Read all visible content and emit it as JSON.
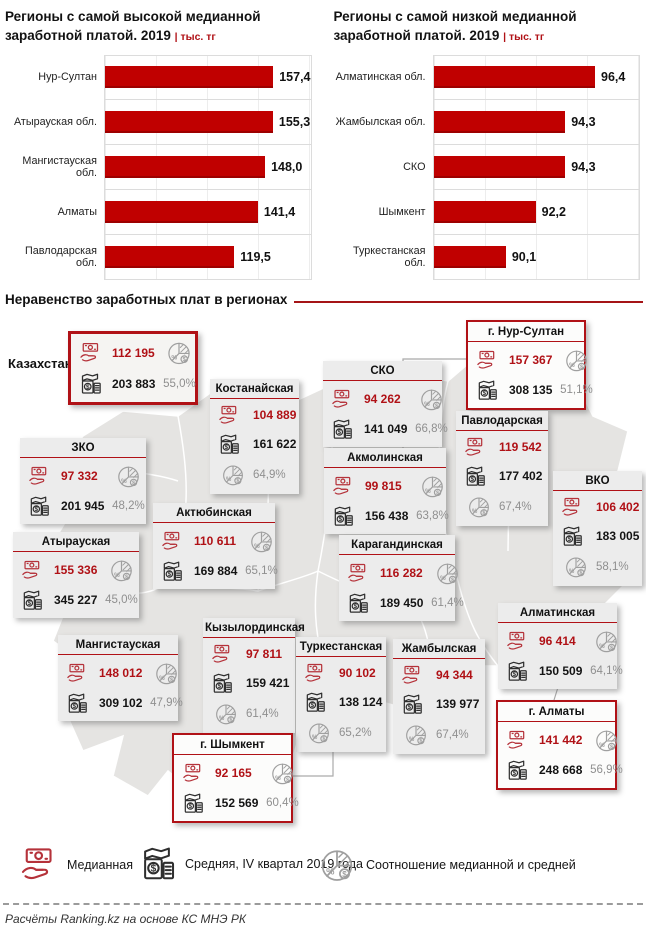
{
  "chart_data": [
    {
      "type": "bar",
      "orientation": "horizontal",
      "title": "Регионы с самой высокой медианной заработной платой. 2019",
      "unit": "| тыс. тг",
      "categories": [
        "Нур-Султан",
        "Атырауская обл.",
        "Мангистауская обл.",
        "Алматы",
        "Павлодарская обл."
      ],
      "values": [
        157.4,
        155.3,
        148.0,
        141.4,
        119.5
      ],
      "value_labels": [
        "157,4",
        "155,3",
        "148,0",
        "141,4",
        "119,5"
      ],
      "xlim": [
        0,
        190
      ],
      "bar_color": "#c00000",
      "grid": true,
      "legend": "none"
    },
    {
      "type": "bar",
      "orientation": "horizontal",
      "title": "Регионы с самой низкой медианной заработной платой. 2019",
      "unit": "| тыс. тг",
      "categories": [
        "Алматинская обл.",
        "Жамбылская обл.",
        "СКО",
        "Шымкент",
        "Туркестанская обл."
      ],
      "values": [
        96.4,
        94.3,
        94.3,
        92.2,
        90.1
      ],
      "value_labels": [
        "96,4",
        "94,3",
        "94,3",
        "92,2",
        "90,1"
      ],
      "xlim": [
        85,
        99.5
      ],
      "bar_color": "#c00000",
      "grid": true,
      "legend": "none"
    }
  ],
  "section": {
    "title": "Неравенство заработных плат в регионах"
  },
  "country": {
    "label": "Казахстан",
    "median": "112 195",
    "average": "203 883",
    "ratio": "55,0%"
  },
  "regions": [
    {
      "name": "СКО",
      "median": "94 262",
      "average": "141 049",
      "ratio": "66,8%"
    },
    {
      "name": "г. Нур-Султан",
      "median": "157 367",
      "average": "308 135",
      "ratio": "51,1%"
    },
    {
      "name": "Костанайская",
      "median": "104 889",
      "average": "161 622",
      "ratio": "64,9%"
    },
    {
      "name": "Акмолинская",
      "median": "99 815",
      "average": "156 438",
      "ratio": "63,8%"
    },
    {
      "name": "Павлодарская",
      "median": "119 542",
      "average": "177 402",
      "ratio": "67,4%"
    },
    {
      "name": "ВКО",
      "median": "106 402",
      "average": "183 005",
      "ratio": "58,1%"
    },
    {
      "name": "ЗКО",
      "median": "97 332",
      "average": "201 945",
      "ratio": "48,2%"
    },
    {
      "name": "Актюбинская",
      "median": "110 611",
      "average": "169 884",
      "ratio": "65,1%"
    },
    {
      "name": "Карагандинская",
      "median": "116 282",
      "average": "189 450",
      "ratio": "61,4%"
    },
    {
      "name": "Атырауская",
      "median": "155 336",
      "average": "345 227",
      "ratio": "45,0%"
    },
    {
      "name": "Мангистауская",
      "median": "148 012",
      "average": "309 102",
      "ratio": "47,9%"
    },
    {
      "name": "Кызылординская",
      "median": "97 811",
      "average": "159 421",
      "ratio": "61,4%"
    },
    {
      "name": "Туркестанская",
      "median": "90 102",
      "average": "138 124",
      "ratio": "65,2%"
    },
    {
      "name": "Жамбылская",
      "median": "94 344",
      "average": "139 977",
      "ratio": "67,4%"
    },
    {
      "name": "Алматинская",
      "median": "96 414",
      "average": "150 509",
      "ratio": "64,1%"
    },
    {
      "name": "г. Алматы",
      "median": "141 442",
      "average": "248 668",
      "ratio": "56,9%"
    },
    {
      "name": "г. Шымкент",
      "median": "92 165",
      "average": "152 569",
      "ratio": "60,4%"
    }
  ],
  "legend": {
    "items": [
      {
        "icon": "median-icon",
        "label": "Медианная"
      },
      {
        "icon": "average-icon",
        "label": "Средняя, IV квартал 2019 года"
      },
      {
        "icon": "ratio-icon",
        "label": "Соотношение медианной и средней"
      }
    ]
  },
  "footer": {
    "source": "Расчёты Ranking.kz на основе КС МНЭ РК"
  },
  "colors": {
    "accent": "#b01116",
    "bar": "#c00000",
    "median_text": "#b01116",
    "average_text": "#141414",
    "ratio_text": "#8f8f8f",
    "map_fill": "#e5e4e2"
  }
}
